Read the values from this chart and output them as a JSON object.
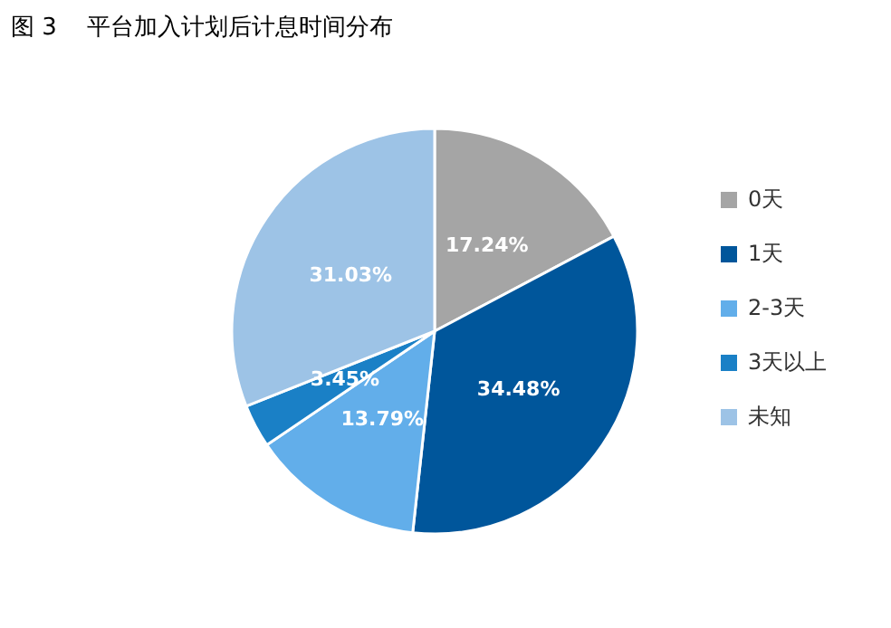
{
  "chart_data": {
    "type": "pie",
    "title": "图 3    平台加入计划后计息时间分布",
    "categories": [
      "0天",
      "1天",
      "2-3天",
      "3天以上",
      "未知"
    ],
    "values": [
      17.24,
      34.48,
      13.79,
      3.45,
      31.03
    ],
    "colors": [
      "#a5a5a5",
      "#00569b",
      "#62aeea",
      "#1a80c6",
      "#9dc3e6"
    ],
    "value_labels": [
      "17.24%",
      "34.48%",
      "13.79%",
      "3.45%",
      "31.03%"
    ],
    "legend": "right"
  }
}
